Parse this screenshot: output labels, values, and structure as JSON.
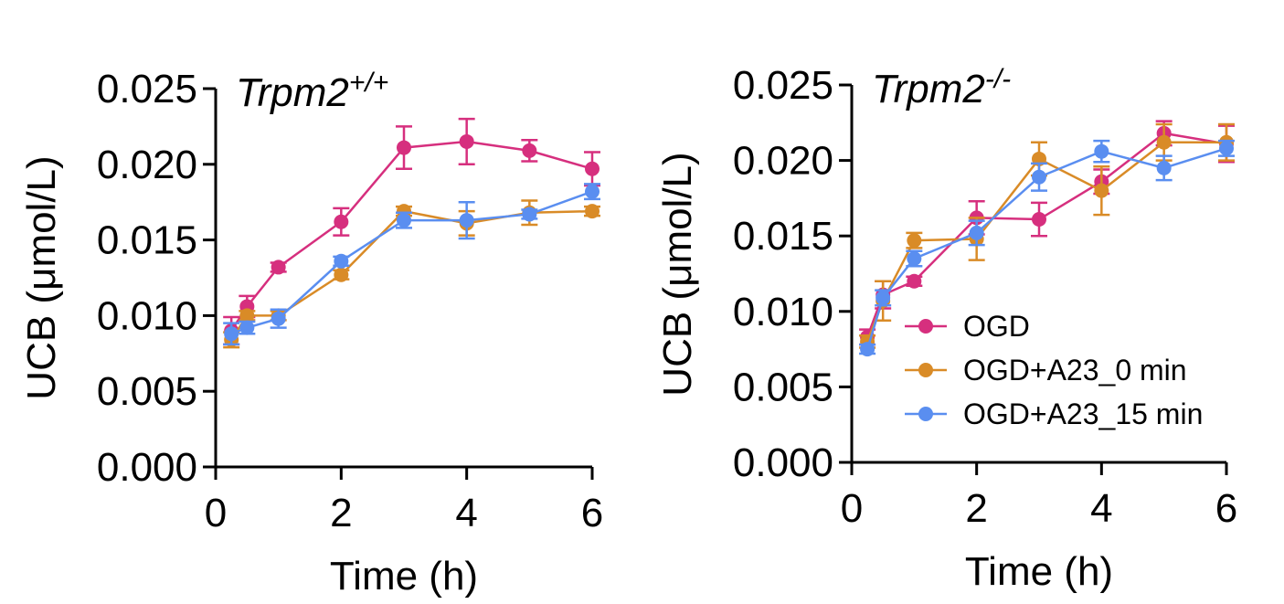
{
  "chart_data": [
    {
      "type": "line",
      "title_main": "Trpm2",
      "title_sup": "+/+",
      "xlabel": "Time (h)",
      "ylabel": "UCB (μmol/L)",
      "xlim": [
        0,
        6
      ],
      "ylim": [
        0,
        0.025
      ],
      "xticks": [
        0,
        2,
        4,
        6
      ],
      "xtick_labels": [
        "0",
        "2",
        "4",
        "6"
      ],
      "yticks": [
        0,
        0.005,
        0.01,
        0.015,
        0.02,
        0.025
      ],
      "ytick_labels": [
        "0.000",
        "0.005",
        "0.010",
        "0.015",
        "0.020",
        "0.025"
      ],
      "x": [
        0.25,
        0.5,
        1,
        2,
        3,
        4,
        5,
        6
      ],
      "series": [
        {
          "name": "OGD",
          "color": "#d62f7e",
          "values": [
            0.009,
            0.0106,
            0.0132,
            0.0162,
            0.0211,
            0.0215,
            0.0209,
            0.0197
          ],
          "errors": [
            0.0009,
            0.0007,
            0.0003,
            0.0009,
            0.0014,
            0.0015,
            0.0007,
            0.0011
          ]
        },
        {
          "name": "OGD+A23_0 min",
          "color": "#d98b27",
          "values": [
            0.0084,
            0.01,
            0.01,
            0.0127,
            0.0169,
            0.0161,
            0.0168,
            0.0169
          ],
          "errors": [
            0.0005,
            0.0003,
            0.0003,
            0.0003,
            0.0003,
            0.0008,
            0.0008,
            0.0003
          ]
        },
        {
          "name": "OGD+A23_15 min",
          "color": "#5a8ef0",
          "values": [
            0.0088,
            0.0092,
            0.0098,
            0.0136,
            0.0163,
            0.0163,
            0.0167,
            0.0182
          ],
          "errors": [
            0.0007,
            0.0004,
            0.0006,
            0.0003,
            0.0005,
            0.0012,
            0.0003,
            0.0005
          ]
        }
      ]
    },
    {
      "type": "line",
      "title_main": "Trpm2",
      "title_sup": "-/-",
      "xlabel": "Time (h)",
      "ylabel": "UCB (μmol/L)",
      "xlim": [
        0,
        6
      ],
      "ylim": [
        0,
        0.025
      ],
      "xticks": [
        0,
        2,
        4,
        6
      ],
      "xtick_labels": [
        "0",
        "2",
        "4",
        "6"
      ],
      "yticks": [
        0,
        0.005,
        0.01,
        0.015,
        0.02,
        0.025
      ],
      "ytick_labels": [
        "0.000",
        "0.005",
        "0.010",
        "0.015",
        "0.020",
        "0.025"
      ],
      "x": [
        0.25,
        0.5,
        1,
        2,
        3,
        4,
        5,
        6
      ],
      "legend": {
        "position": "center-right",
        "entries": [
          "OGD",
          "OGD+A23_0 min",
          "OGD+A23_15 min"
        ]
      },
      "series": [
        {
          "name": "OGD",
          "color": "#d62f7e",
          "values": [
            0.0083,
            0.0111,
            0.012,
            0.0162,
            0.0161,
            0.0186,
            0.0218,
            0.0211
          ],
          "errors": [
            0.0005,
            0.0009,
            0.0003,
            0.0011,
            0.0011,
            0.0008,
            0.0008,
            0.0012
          ]
        },
        {
          "name": "OGD+A23_0 min",
          "color": "#d98b27",
          "values": [
            0.008,
            0.0107,
            0.0147,
            0.0148,
            0.0201,
            0.018,
            0.0212,
            0.0212
          ],
          "errors": [
            0.0004,
            0.0013,
            0.0005,
            0.0014,
            0.0011,
            0.0016,
            0.0012,
            0.0012
          ]
        },
        {
          "name": "OGD+A23_15 min",
          "color": "#5a8ef0",
          "values": [
            0.0075,
            0.0109,
            0.0135,
            0.0152,
            0.0189,
            0.0206,
            0.0195,
            0.0208
          ],
          "errors": [
            0.0003,
            0.0005,
            0.0005,
            0.0008,
            0.0009,
            0.0007,
            0.0008,
            0.0005
          ]
        }
      ]
    }
  ]
}
